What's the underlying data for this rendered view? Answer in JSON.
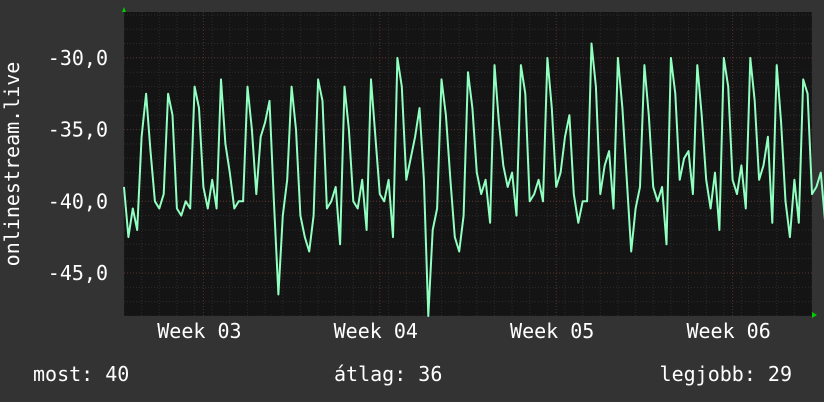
{
  "chart_data": {
    "type": "line",
    "ylabel": "onlinestream.live",
    "ylim": [
      -48,
      -26.8
    ],
    "yticks": [
      -30.0,
      -35.0,
      -40.0,
      -45.0
    ],
    "ytick_labels": [
      "-30,0",
      "-35,0",
      "-40,0",
      "-45,0"
    ],
    "xlim": [
      0,
      39
    ],
    "xticks": [
      {
        "x": 4.5,
        "label": "Week 03"
      },
      {
        "x": 14.5,
        "label": "Week 04"
      },
      {
        "x": 24.5,
        "label": "Week 05"
      },
      {
        "x": 34.5,
        "label": "Week 06"
      }
    ],
    "grid": true,
    "series": [
      {
        "values_note": "daily cycles, roughly 4 samples per day",
        "x_step": 0.25,
        "values": [
          -39.0,
          -42.5,
          -40.5,
          -42.0,
          -35.5,
          -32.5,
          -36.5,
          -40.0,
          -40.5,
          -39.5,
          -32.5,
          -34.0,
          -40.5,
          -41.0,
          -40.0,
          -40.5,
          -32.0,
          -33.5,
          -39.0,
          -40.5,
          -38.5,
          -40.5,
          -31.5,
          -36.0,
          -38.0,
          -40.5,
          -40.0,
          -40.0,
          -32.0,
          -35.0,
          -39.5,
          -35.5,
          -34.5,
          -33.0,
          -40.0,
          -46.5,
          -41.0,
          -38.5,
          -32.0,
          -35.0,
          -41.0,
          -42.5,
          -43.5,
          -41.0,
          -31.5,
          -33.0,
          -40.5,
          -40.0,
          -39.0,
          -43.0,
          -32.0,
          -35.0,
          -40.0,
          -40.5,
          -38.5,
          -42.0,
          -31.5,
          -35.5,
          -39.5,
          -40.0,
          -38.5,
          -42.5,
          -30.0,
          -32.0,
          -38.5,
          -37.0,
          -35.5,
          -33.5,
          -38.5,
          -48.0,
          -42.0,
          -40.5,
          -31.5,
          -34.0,
          -38.5,
          -42.5,
          -43.5,
          -41.0,
          -31.0,
          -33.5,
          -38.0,
          -39.5,
          -38.5,
          -41.5,
          -30.5,
          -34.5,
          -37.5,
          -39.0,
          -38.0,
          -41.0,
          -30.5,
          -32.5,
          -40.0,
          -39.5,
          -38.5,
          -40.0,
          -30.0,
          -33.5,
          -39.0,
          -38.0,
          -35.5,
          -34.0,
          -39.5,
          -41.5,
          -40.0,
          -40.0,
          -29.0,
          -32.0,
          -39.5,
          -37.5,
          -36.5,
          -40.5,
          -30.0,
          -33.5,
          -38.5,
          -43.5,
          -40.5,
          -39.0,
          -30.5,
          -34.0,
          -39.0,
          -40.0,
          -39.0,
          -43.0,
          -30.0,
          -32.5,
          -38.5,
          -37.0,
          -36.5,
          -39.5,
          -30.5,
          -34.0,
          -38.5,
          -40.5,
          -38.0,
          -42.0,
          -30.0,
          -32.0,
          -38.5,
          -39.5,
          -37.5,
          -40.5,
          -30.0,
          -33.0,
          -38.5,
          -37.5,
          -35.5,
          -41.5,
          -30.5,
          -34.5,
          -40.0,
          -42.5,
          -38.5,
          -41.5,
          -31.5,
          -32.5,
          -39.5,
          -39.0,
          -38.0,
          -41.5,
          -30.5,
          -34.0,
          -39.5,
          -38.5,
          -37.5,
          -36.0,
          -34.5,
          -46.0,
          -43.0,
          -40.5,
          -31.5,
          -35.5,
          -40.0,
          -42.5,
          -41.0,
          -40.0,
          -30.0,
          -33.5,
          -39.0,
          -39.5,
          -39.0,
          -42.5,
          -31.5,
          -35.0,
          -40.0,
          -39.0,
          -37.5,
          -42.0,
          -30.0,
          -33.5,
          -40.0,
          -40.0
        ]
      }
    ]
  },
  "footer": {
    "now": "most: 40",
    "avg": "átlag: 36",
    "max": "legjobb: 29"
  },
  "colors": {
    "background": "#333333",
    "plot_background": "#141414",
    "line": "#90ffc0",
    "grid_major": "#5a3030",
    "grid_minor": "#2c2c2c",
    "axis_arrow": "#00cc00"
  }
}
